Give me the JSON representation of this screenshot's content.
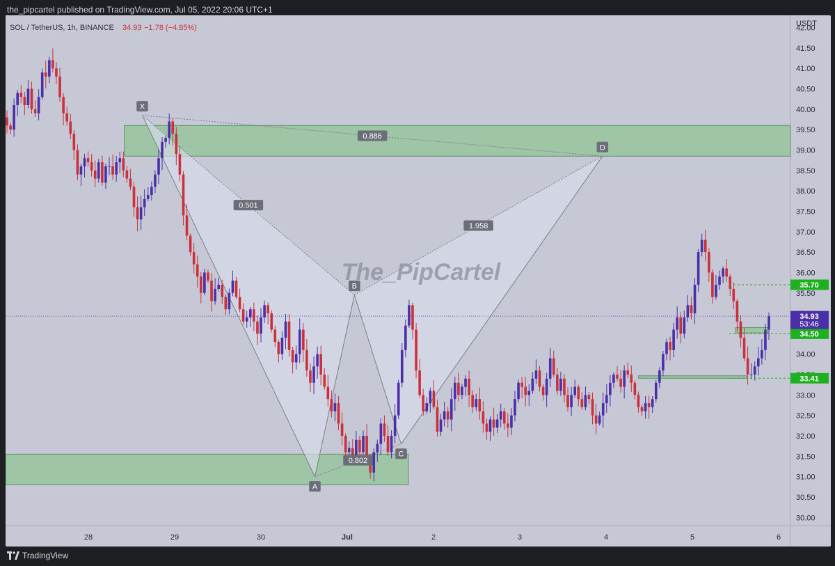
{
  "publish_info": "the_pipcartel published on TradingView.com, Jul 05, 2022 20:06 UTC+1",
  "footer_brand": "TradingView",
  "symbol_info": {
    "name": "SOL / TetherUS, 1h, BINANCE",
    "price": "34.93",
    "change": "−1.78 (−4.85%)"
  },
  "currency": "USDT",
  "watermark": "The_PipCartel",
  "colors": {
    "up": "#4a2fa8",
    "down": "#c9313b",
    "zone_fill": "#92c49a",
    "zone_stroke": "#5e9166",
    "pattern_fill": "#d9dce9",
    "pattern_line": "#7b7e8a",
    "label_bg": "#6b6d78",
    "green_label": "#1fb01f"
  },
  "price_badges": [
    {
      "text": "35.70",
      "value": 35.7,
      "color": "#1fb01f",
      "dashed": true
    },
    {
      "text": "34.50",
      "value": 34.5,
      "color": "#1fb01f",
      "dashed": true
    },
    {
      "text": "33.41",
      "value": 33.41,
      "color": "#1fb01f",
      "dashed": true
    }
  ],
  "current_price_badge": {
    "price": "34.93",
    "countdown": "53:46",
    "value": 34.93,
    "color": "#4a2fa8"
  },
  "chart_data": {
    "type": "candlestick",
    "y_axis": {
      "min": 29.8,
      "max": 42.3,
      "ticks": [
        30.0,
        30.5,
        31.0,
        31.5,
        32.0,
        32.5,
        33.0,
        33.5,
        34.0,
        34.5,
        35.0,
        35.5,
        36.0,
        36.5,
        37.0,
        37.5,
        38.0,
        38.5,
        39.0,
        39.5,
        40.0,
        40.5,
        41.0,
        41.5,
        42.0
      ]
    },
    "x_axis": {
      "labels": [
        "28",
        "29",
        "30",
        "Jul",
        "2",
        "3",
        "4",
        "5",
        "6"
      ],
      "bold": [
        "Jul"
      ]
    },
    "zones": [
      {
        "x0": "Jun 28 10:00",
        "x1": "end",
        "low": 38.85,
        "high": 39.6
      },
      {
        "x0": "start",
        "x1": "Jul 01 17:00",
        "low": 30.8,
        "high": 31.55
      },
      {
        "x0": "Jul 05 12:00",
        "x1": "Jul 05 21:00",
        "low": 34.52,
        "high": 34.65
      },
      {
        "x0": "Jul 04 09:00",
        "x1": "Jul 05 15:00",
        "low": 33.41,
        "high": 33.47
      }
    ],
    "pattern": {
      "name": "bat",
      "points": [
        {
          "label": "X",
          "time": "Jun 28 15:00",
          "price": 39.85
        },
        {
          "label": "A",
          "time": "Jun 30 15:00",
          "price": 31.0
        },
        {
          "label": "B",
          "time": "Jul 01 02:00",
          "price": 35.45
        },
        {
          "label": "C",
          "time": "Jul 01 15:00",
          "price": 31.8
        },
        {
          "label": "D",
          "time": "Jul 03 23:00",
          "price": 38.85
        }
      ],
      "ratios": [
        {
          "text": "0.501",
          "between": "XA-B"
        },
        {
          "text": "0.802",
          "between": "AB-C"
        },
        {
          "text": "1.958",
          "between": "BC-D"
        },
        {
          "text": "0.886",
          "between": "XA-D"
        }
      ]
    },
    "series_close": [
      39.6,
      39.5,
      40.1,
      40.4,
      40.3,
      40.1,
      40.5,
      40.0,
      39.9,
      40.3,
      40.9,
      40.8,
      41.2,
      41.0,
      40.8,
      40.3,
      39.9,
      39.7,
      39.4,
      39.0,
      38.4,
      38.6,
      38.8,
      38.7,
      38.5,
      38.3,
      38.7,
      38.2,
      38.6,
      38.6,
      38.4,
      38.7,
      38.8,
      38.5,
      38.3,
      38.1,
      37.6,
      37.3,
      37.6,
      37.8,
      37.9,
      38.1,
      38.4,
      38.8,
      39.2,
      39.3,
      39.7,
      39.4,
      38.9,
      38.4,
      37.4,
      36.9,
      36.5,
      36.2,
      35.9,
      35.5,
      36.0,
      35.8,
      35.3,
      35.6,
      35.7,
      35.4,
      35.1,
      35.5,
      35.8,
      35.4,
      35.1,
      34.8,
      34.9,
      35.1,
      34.8,
      34.5,
      34.9,
      35.2,
      35.0,
      34.6,
      34.3,
      34.0,
      34.4,
      34.8,
      34.1,
      33.8,
      34.0,
      34.6,
      34.1,
      33.6,
      33.3,
      33.7,
      34.0,
      33.5,
      33.2,
      32.9,
      32.6,
      32.8,
      32.3,
      32.0,
      31.6,
      31.7,
      31.4,
      31.9,
      31.6,
      32.0,
      31.5,
      31.1,
      31.6,
      31.8,
      32.3,
      32.0,
      31.6,
      32.0,
      32.5,
      33.3,
      34.1,
      34.7,
      35.2,
      34.6,
      33.6,
      33.0,
      32.6,
      32.8,
      33.1,
      32.7,
      32.1,
      32.4,
      32.6,
      32.4,
      32.9,
      33.3,
      33.0,
      33.2,
      33.4,
      33.0,
      32.7,
      32.9,
      32.6,
      32.3,
      32.1,
      32.4,
      32.2,
      32.4,
      32.6,
      32.3,
      32.2,
      32.5,
      32.9,
      33.3,
      33.2,
      33.0,
      33.1,
      33.4,
      33.6,
      33.2,
      33.0,
      33.4,
      33.9,
      33.5,
      33.1,
      33.4,
      33.0,
      32.7,
      33.0,
      33.2,
      32.9,
      32.7,
      33.0,
      32.9,
      32.5,
      32.3,
      32.5,
      32.8,
      33.0,
      33.3,
      33.5,
      33.4,
      33.2,
      33.6,
      33.5,
      33.3,
      33.0,
      32.7,
      32.6,
      32.8,
      32.7,
      32.9,
      33.3,
      33.6,
      34.0,
      34.3,
      34.1,
      34.6,
      34.9,
      34.5,
      34.9,
      35.2,
      35.0,
      35.7,
      36.5,
      36.8,
      36.5,
      36.0,
      35.4,
      35.7,
      35.9,
      36.1,
      35.9,
      35.6,
      35.3,
      34.8,
      34.4,
      33.9,
      33.5,
      33.5,
      33.7,
      33.9,
      34.1,
      34.6,
      34.93
    ]
  }
}
